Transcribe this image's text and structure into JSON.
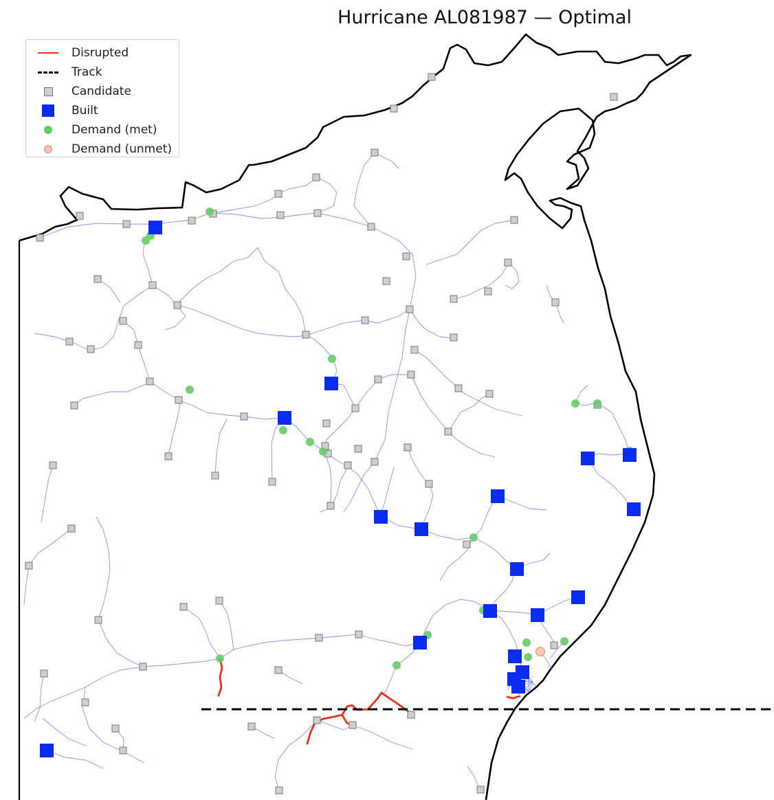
{
  "title": "Hurricane AL081987 — Optimal",
  "legend": {
    "disrupted": "Disrupted",
    "track": "Track",
    "candidate": "Candidate",
    "built": "Built",
    "demand_met": "Demand (met)",
    "demand_unmet": "Demand (unmet)"
  },
  "colors": {
    "network": "#6f7ff5",
    "disrupted": "#e8321e",
    "track": "#000000",
    "candidate_fill": "#cfcfcf",
    "built": "#0a2cf0",
    "demand_met": "#66cc66",
    "demand_unmet": "#f8c4b4",
    "coast": "#000000"
  }
}
